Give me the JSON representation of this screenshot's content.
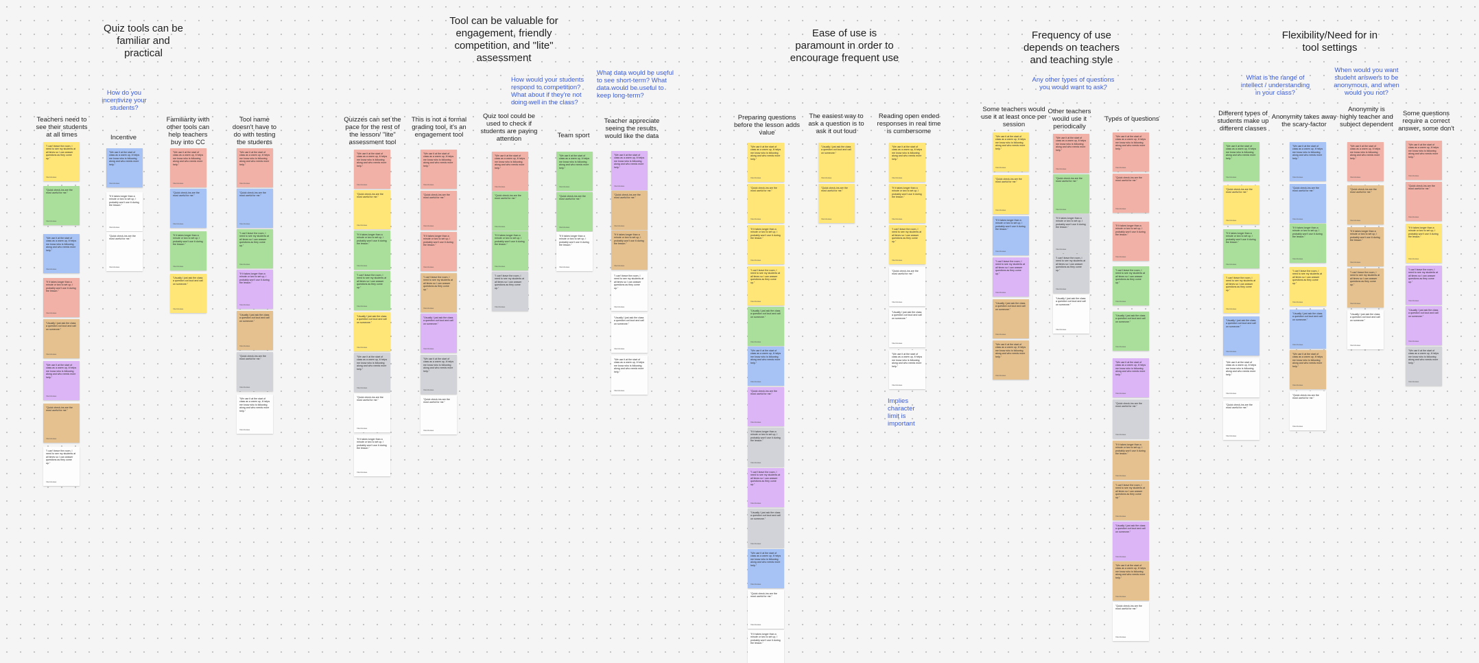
{
  "titles": {
    "quiz_tools": "Quiz tools can be familiar and practical",
    "engagement": "Tool can be valuable for engagement, friendly competition, and \"lite\" assessment",
    "ease_of_use": "Ease of use is paramount in order to encourage frequent use",
    "frequency": "Frequency of use depends on teachers and teaching style",
    "flexibility": "Flexibility/Need for in tool settings"
  },
  "questions": {
    "incentivize": "How do you incentivize your students?",
    "competition": "How would your students respond to competition? What about if they're not doing well in the class?",
    "data": "What data would be useful to see short-term? What data would be useful to keep long-term?",
    "other_types": "Any other types of questions you would want to ask?",
    "range": "What is the range of intellect / understanding in your class?",
    "anonymous": "When would you want student answers to be anonymous, and when would you not?",
    "implies": "Implies character limit is important"
  },
  "columns": {
    "c1": "Teachers need to see their students at all times",
    "c2": "Incentive",
    "c3": "Familiarity with other tools can help teachers buy into CC",
    "c4": "Tool name doesn't have to do with testing the students",
    "c5": "Quizzes can set the pace for the rest of the lesson/ \"lite\" assessment tool",
    "c6": "This is not a formal grading tool, it's an engagement tool",
    "c7": "Quiz tool could be used to check if students are paying attention",
    "c8": "Team sport",
    "c9": "Teacher appreciate seeing the results, would like the data",
    "c10": "Preparing questions before the lesson adds value",
    "c11": "The easiest way to ask a question is to ask it out loud",
    "c12": "Reading open ended responses in real time is cumbersome",
    "c13": "Some teachers would use it at least once per session",
    "c14": "Other teachers would use it periodically",
    "c15": "Types of questions",
    "c16": "Different types of students make up different classes",
    "c17": "Anonymity takes away the scary-factor",
    "c18": "Anonymity is highly teacher and subject dependent",
    "c19": "Some questions require a correct answer, some don't"
  },
  "colors": {
    "yellow": "#ffe677",
    "green": "#a9df9b",
    "blue": "#a7c3f5",
    "pink": "#f2b1a6",
    "orange": "#e5c18f",
    "purple": "#dbb5f5",
    "gray": "#d1d3d8",
    "white": "#fdfdfd"
  },
  "note_text": {
    "author": "Interviewee",
    "see": "\"I can't leave the room, I need to see my students at all times so I can answer questions as they come up.\"",
    "gen": "\"We use it at the start of class as a warm up, it helps me know who is following along and who needs more help.\"",
    "short": "\"Quick check-ins are the most useful for me.\"",
    "long": "\"If it takes longer than a minute or two to set up, I probably won't use it during the lesson.\"",
    "aloud": "\"Usually I just ask the class a question out loud and call on someone.\""
  }
}
